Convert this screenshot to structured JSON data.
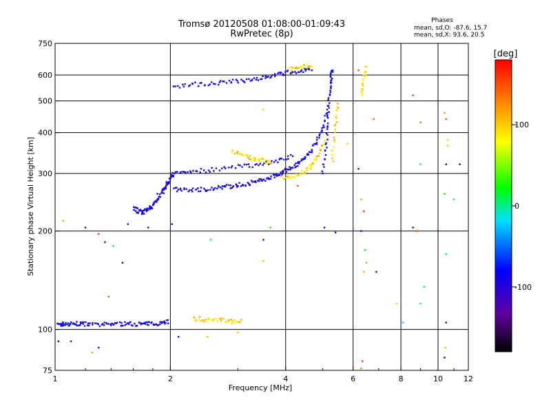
{
  "chart_data": {
    "type": "scatter",
    "title": "Tromsø 20120508 01:08:00-01:09:43",
    "subtitle": "RwPretec (8p)",
    "xlabel": "Frequency [MHz]",
    "ylabel": "Stationary phase Virtual Height [km]",
    "x_scale": "log",
    "y_scale": "log",
    "xlim": [
      1,
      12
    ],
    "ylim": [
      75,
      750
    ],
    "grid": true,
    "x_ticks": [
      "1",
      "2",
      "4",
      "6",
      "8",
      "10",
      "12"
    ],
    "y_ticks": [
      "75",
      "100",
      "200",
      "300",
      "400",
      "500",
      "600",
      "750"
    ],
    "phases_title": "Phases",
    "stats": [
      "mean, sd,O: -87.6, 15.7",
      "mean, sd,X: 93.6, 20.5"
    ],
    "colorbar": {
      "label": "[deg]",
      "range": [
        -180,
        180
      ],
      "ticks": [
        "100",
        "0",
        "-100"
      ],
      "tick_values": [
        100,
        0,
        -100
      ]
    },
    "o_mode_traces": [
      {
        "x": [
          1.02,
          1.05,
          1.1,
          1.15,
          1.2,
          1.3,
          1.4,
          1.5,
          1.6,
          1.7,
          1.8,
          1.9,
          1.98
        ],
        "y": [
          103,
          104,
          104,
          104,
          104,
          103,
          104,
          104,
          104,
          104,
          104,
          105,
          106
        ]
      },
      {
        "x": [
          1.6,
          1.65,
          1.7,
          1.75,
          1.8,
          1.85,
          1.9,
          1.95,
          2.0,
          2.04
        ],
        "y": [
          235,
          230,
          228,
          232,
          240,
          250,
          262,
          275,
          290,
          300
        ]
      },
      {
        "x": [
          2.04,
          2.2,
          2.4,
          2.6,
          2.8,
          3.0,
          3.2,
          3.4,
          3.6,
          3.8,
          4.0,
          4.2,
          4.4,
          4.6,
          4.8,
          5.0,
          5.15
        ],
        "y": [
          268,
          267,
          268,
          270,
          273,
          276,
          280,
          284,
          290,
          298,
          306,
          316,
          328,
          345,
          370,
          410,
          470
        ]
      },
      {
        "x": [
          2.04,
          2.3,
          2.6,
          3.0,
          3.4,
          3.8,
          4.2
        ],
        "y": [
          303,
          305,
          308,
          314,
          320,
          328,
          340
        ]
      },
      {
        "x": [
          2.05,
          2.3,
          2.6,
          2.9,
          3.2,
          3.5,
          3.8,
          4.1,
          4.4,
          4.7
        ],
        "y": [
          555,
          562,
          566,
          572,
          580,
          590,
          602,
          612,
          620,
          625
        ]
      },
      {
        "x": [
          5.0,
          5.1,
          5.15,
          5.2,
          5.25,
          5.3
        ],
        "y": [
          300,
          360,
          440,
          520,
          580,
          630
        ]
      }
    ],
    "x_mode_traces": [
      {
        "x": [
          2.3,
          2.5,
          2.7,
          2.9,
          3.1
        ],
        "y": [
          108,
          107,
          107,
          106,
          106
        ]
      },
      {
        "x": [
          2.9,
          3.1,
          3.3,
          3.5,
          3.7
        ],
        "y": [
          350,
          340,
          332,
          328,
          322
        ]
      },
      {
        "x": [
          3.9,
          4.2,
          4.5,
          4.7,
          4.9,
          5.1
        ],
        "y": [
          290,
          295,
          305,
          320,
          345,
          380
        ]
      },
      {
        "x": [
          4.1,
          4.4,
          4.7
        ],
        "y": [
          628,
          640,
          635
        ]
      },
      {
        "x": [
          5.3,
          5.4,
          5.5
        ],
        "y": [
          330,
          420,
          500
        ]
      },
      {
        "x": [
          6.3,
          6.4,
          6.5
        ],
        "y": [
          520,
          580,
          640
        ]
      }
    ],
    "scattered_points": [
      {
        "x": 1.02,
        "y": 92,
        "phase": -95
      },
      {
        "x": 1.1,
        "y": 92,
        "phase": -100
      },
      {
        "x": 1.05,
        "y": 215,
        "phase": 120
      },
      {
        "x": 1.2,
        "y": 205,
        "phase": -90
      },
      {
        "x": 1.3,
        "y": 196,
        "phase": 160
      },
      {
        "x": 1.35,
        "y": 185,
        "phase": -110
      },
      {
        "x": 1.38,
        "y": 126,
        "phase": 150
      },
      {
        "x": 1.42,
        "y": 180,
        "phase": 10
      },
      {
        "x": 1.5,
        "y": 160,
        "phase": -90
      },
      {
        "x": 1.25,
        "y": 85,
        "phase": 120
      },
      {
        "x": 1.75,
        "y": 205,
        "phase": -95
      },
      {
        "x": 1.55,
        "y": 210,
        "phase": -100
      },
      {
        "x": 2.02,
        "y": 210,
        "phase": -90
      },
      {
        "x": 2.55,
        "y": 188,
        "phase": 10
      },
      {
        "x": 3.5,
        "y": 188,
        "phase": -95
      },
      {
        "x": 3.65,
        "y": 205,
        "phase": 20
      },
      {
        "x": 3.5,
        "y": 162,
        "phase": 110
      },
      {
        "x": 3.5,
        "y": 470,
        "phase": 100
      },
      {
        "x": 4.3,
        "y": 275,
        "phase": 150
      },
      {
        "x": 5.05,
        "y": 205,
        "phase": -95
      },
      {
        "x": 5.4,
        "y": 198,
        "phase": -110
      },
      {
        "x": 5.8,
        "y": 370,
        "phase": 100
      },
      {
        "x": 6.2,
        "y": 310,
        "phase": -90
      },
      {
        "x": 6.3,
        "y": 250,
        "phase": 120
      },
      {
        "x": 6.4,
        "y": 230,
        "phase": 160
      },
      {
        "x": 6.3,
        "y": 200,
        "phase": -100
      },
      {
        "x": 6.45,
        "y": 175,
        "phase": 20
      },
      {
        "x": 6.5,
        "y": 160,
        "phase": 120
      },
      {
        "x": 6.4,
        "y": 150,
        "phase": 110
      },
      {
        "x": 6.9,
        "y": 150,
        "phase": -90
      },
      {
        "x": 6.35,
        "y": 80,
        "phase": 160
      },
      {
        "x": 6.3,
        "y": 76,
        "phase": 130
      },
      {
        "x": 6.2,
        "y": 620,
        "phase": 150
      },
      {
        "x": 6.8,
        "y": 440,
        "phase": 140
      },
      {
        "x": 7.8,
        "y": 120,
        "phase": 100
      },
      {
        "x": 8.1,
        "y": 105,
        "phase": -20
      },
      {
        "x": 8.6,
        "y": 205,
        "phase": -90
      },
      {
        "x": 8.8,
        "y": 200,
        "phase": 150
      },
      {
        "x": 8.6,
        "y": 520,
        "phase": 160
      },
      {
        "x": 9.0,
        "y": 430,
        "phase": 130
      },
      {
        "x": 9.0,
        "y": 320,
        "phase": -5
      },
      {
        "x": 9.0,
        "y": 120,
        "phase": -10
      },
      {
        "x": 9.2,
        "y": 135,
        "phase": -5
      },
      {
        "x": 10.4,
        "y": 460,
        "phase": 120
      },
      {
        "x": 10.5,
        "y": 440,
        "phase": 150
      },
      {
        "x": 10.6,
        "y": 380,
        "phase": 60
      },
      {
        "x": 10.6,
        "y": 365,
        "phase": 50
      },
      {
        "x": 10.5,
        "y": 320,
        "phase": -95
      },
      {
        "x": 10.4,
        "y": 260,
        "phase": 20
      },
      {
        "x": 10.5,
        "y": 170,
        "phase": -10
      },
      {
        "x": 10.5,
        "y": 105,
        "phase": -95
      },
      {
        "x": 10.45,
        "y": 88,
        "phase": 110
      },
      {
        "x": 10.4,
        "y": 82,
        "phase": -90
      },
      {
        "x": 11.0,
        "y": 250,
        "phase": -10
      },
      {
        "x": 11.4,
        "y": 320,
        "phase": -95
      },
      {
        "x": 1.3,
        "y": 88,
        "phase": -90
      },
      {
        "x": 3.0,
        "y": 98,
        "phase": 100
      },
      {
        "x": 2.5,
        "y": 95,
        "phase": 110
      },
      {
        "x": 2.1,
        "y": 95,
        "phase": -95
      },
      {
        "x": 1.85,
        "y": 260,
        "phase": -90
      }
    ]
  }
}
